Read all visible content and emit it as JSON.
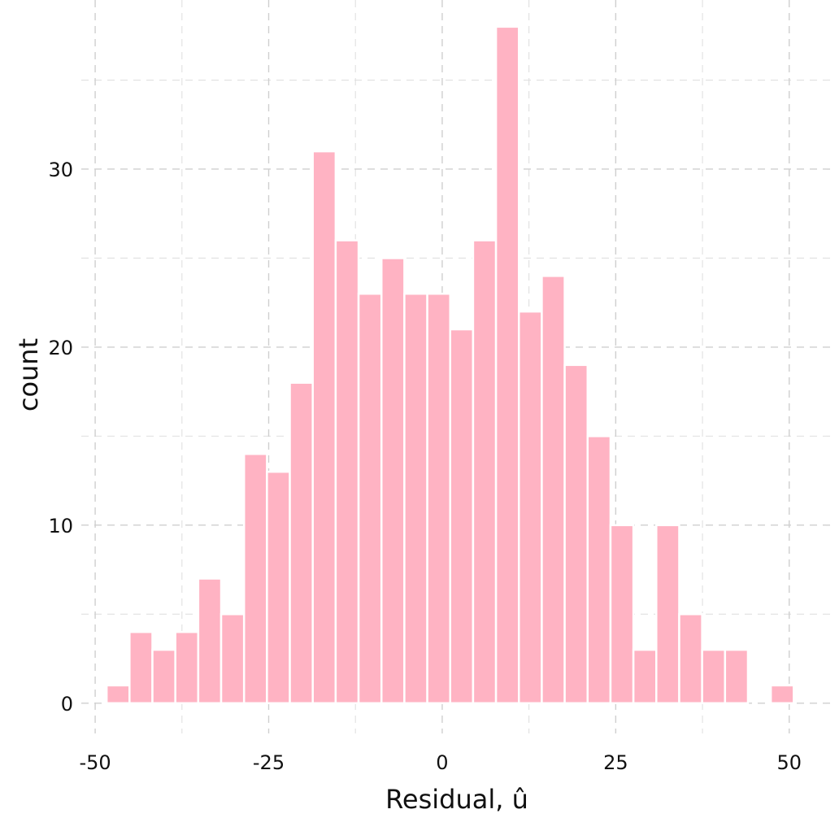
{
  "chart_data": {
    "type": "bar",
    "subtype": "histogram",
    "xlabel": "Residual, û",
    "ylabel": "count",
    "xlim": [
      -52,
      56
    ],
    "ylim": [
      -1.7,
      39.5
    ],
    "xticks": [
      -50,
      -25,
      0,
      25,
      50
    ],
    "xtick_labels": [
      "-50",
      "-25",
      "0",
      "25",
      "50"
    ],
    "yticks": [
      0,
      10,
      20,
      30
    ],
    "ytick_labels": [
      "0",
      "10",
      "20",
      "30"
    ],
    "x_minor_gridlines": [
      -37.5,
      -12.5,
      12.5,
      37.5
    ],
    "y_minor_gridlines": [
      5,
      15,
      25,
      35
    ],
    "grid": true,
    "bar_color": "#ffb3c3",
    "bin_width": 3.3,
    "bin_centers": [
      -46.7,
      -43.4,
      -40.1,
      -36.8,
      -33.5,
      -30.2,
      -26.9,
      -23.6,
      -20.3,
      -17.0,
      -13.7,
      -10.4,
      -7.1,
      -3.8,
      -0.5,
      2.8,
      6.1,
      9.4,
      12.7,
      16.0,
      19.3,
      22.6,
      25.9,
      29.2,
      32.5,
      35.8,
      39.1,
      42.4,
      45.7,
      49.0
    ],
    "values": [
      1,
      4,
      3,
      4,
      7,
      5,
      14,
      13,
      18,
      31,
      26,
      23,
      25,
      23,
      23,
      21,
      26,
      38,
      22,
      24,
      19,
      15,
      10,
      3,
      10,
      5,
      3,
      3,
      0,
      1
    ]
  }
}
